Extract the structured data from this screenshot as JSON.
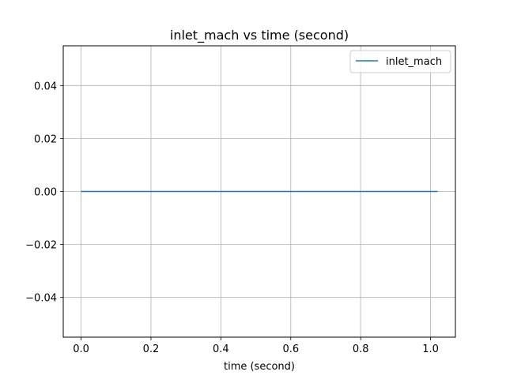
{
  "chart_data": {
    "type": "line",
    "title": "inlet_mach vs time (second)",
    "xlabel": "time (second)",
    "ylabel": "",
    "xlim": [
      -0.051,
      1.071
    ],
    "ylim": [
      -0.055,
      0.055
    ],
    "xticks": [
      0.0,
      0.2,
      0.4,
      0.6,
      0.8,
      1.0
    ],
    "xtick_labels": [
      "0.0",
      "0.2",
      "0.4",
      "0.6",
      "0.8",
      "1.0"
    ],
    "yticks": [
      -0.04,
      -0.02,
      0.0,
      0.02,
      0.04
    ],
    "ytick_labels": [
      "−0.04",
      "−0.02",
      "0.00",
      "0.02",
      "0.04"
    ],
    "grid": true,
    "legend_position": "upper right",
    "series": [
      {
        "name": "inlet_mach",
        "color": "#1f77b4",
        "x": [
          0.0,
          1.02
        ],
        "y": [
          0.0,
          0.0
        ]
      }
    ]
  }
}
